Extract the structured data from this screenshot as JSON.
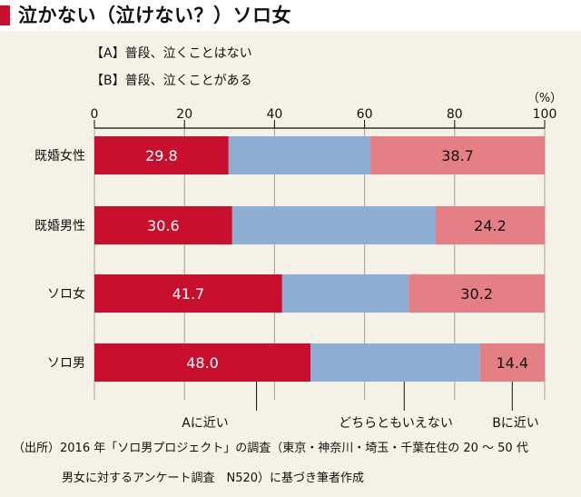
{
  "title": "泣かない（泣けない？）ソロ女",
  "legend": {
    "a": "【A】普段、泣くことはない",
    "b": "【B】普段、泣くことがある"
  },
  "colors": {
    "title_mark": "#c8102e",
    "a": "#c8102e",
    "mid": "#8eadd3",
    "b": "#e57f86",
    "background": "#f4f1e6"
  },
  "chart_data": {
    "type": "bar",
    "orientation": "horizontal",
    "stacked": true,
    "unit": "（%）",
    "xlim": [
      0,
      100
    ],
    "x_ticks": [
      "0",
      "20",
      "40",
      "60",
      "80",
      "100"
    ],
    "categories": [
      "既婚女性",
      "既婚男性",
      "ソロ女",
      "ソロ男"
    ],
    "series": [
      {
        "name": "Aに近い",
        "values": [
          29.8,
          30.6,
          41.7,
          48.0
        ],
        "labels": [
          "29.8",
          "30.6",
          "41.7",
          "48.0"
        ],
        "color": "#c8102e"
      },
      {
        "name": "どちらともいえない",
        "values": [
          31.5,
          45.2,
          28.1,
          37.6
        ],
        "labels": [
          "",
          "",
          "",
          ""
        ],
        "color": "#8eadd3"
      },
      {
        "name": "Bに近い",
        "values": [
          38.7,
          24.2,
          30.2,
          14.4
        ],
        "labels": [
          "38.7",
          "24.2",
          "30.2",
          "14.4"
        ],
        "color": "#e57f86"
      }
    ],
    "grid": "vertical"
  },
  "notes": {
    "line1": "（出所）2016 年「ソロ男プロジェクト」の調査（東京・神奈川・埼玉・千葉在住の 20 ～ 50 代",
    "line2": "男女に対するアンケート調査　N520）に基づき筆者作成"
  }
}
